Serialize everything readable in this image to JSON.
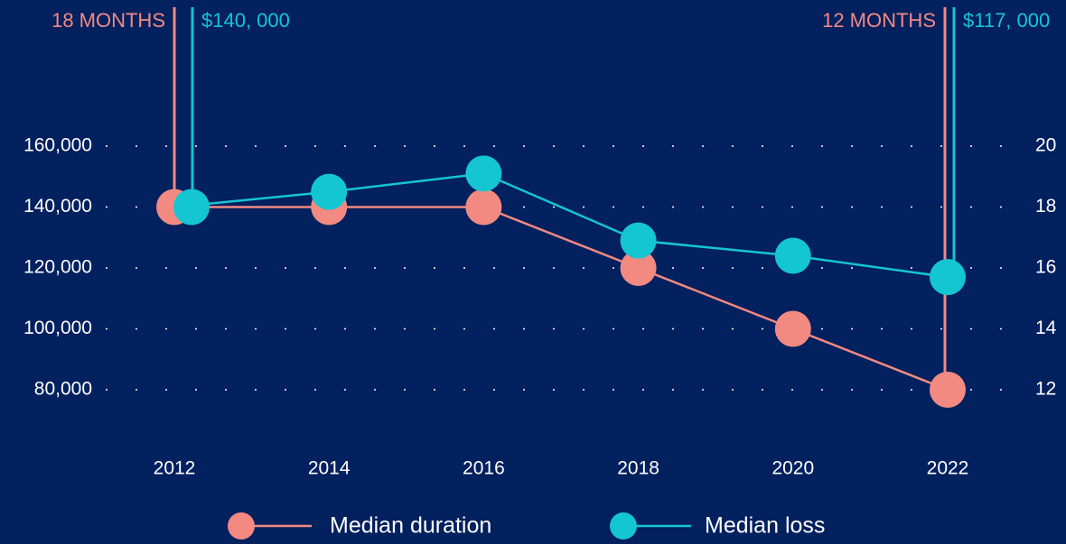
{
  "chart_data": {
    "type": "line",
    "categories": [
      "2012",
      "2014",
      "2016",
      "2018",
      "2020",
      "2022"
    ],
    "series": [
      {
        "name": "Median duration",
        "color": "#f28a82",
        "axis": "y2",
        "values": [
          18,
          18,
          18,
          16,
          14,
          12
        ]
      },
      {
        "name": "Median loss",
        "color": "#14c6d2",
        "values": [
          140000,
          145000,
          151000,
          129000,
          124000,
          117000
        ]
      }
    ],
    "ylim": [
      80000,
      160000
    ],
    "yticks": [
      {
        "value": 80000,
        "label": "80,000"
      },
      {
        "value": 100000,
        "label": "100,000"
      },
      {
        "value": 120000,
        "label": "120,000"
      },
      {
        "value": 140000,
        "label": "140,000"
      },
      {
        "value": 160000,
        "label": "160,000"
      }
    ],
    "y2lim": [
      12,
      20
    ],
    "y2ticks": [
      12,
      14,
      16,
      18,
      20
    ],
    "grid": true,
    "legend": "bottom",
    "annotations": [
      "18 MONTHS",
      "$140, 000",
      "12 MONTHS",
      "$117, 000"
    ]
  }
}
